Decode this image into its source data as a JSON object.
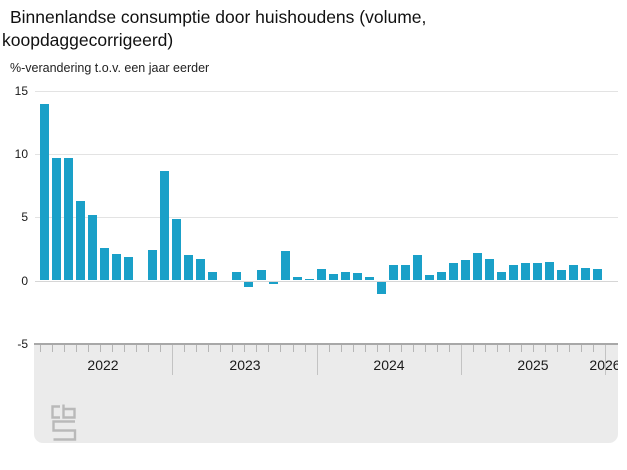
{
  "title": {
    "line1": "Binnenlandse consumptie door huishoudens (volume,",
    "line2": "koopdaggecorrigeerd)"
  },
  "chart_data": {
    "type": "bar",
    "title": "Binnenlandse consumptie door huishoudens (volume, koopdaggecorrigeerd)",
    "unit_label": "%-verandering t.o.v. een jaar eerder",
    "ylabel": "%-verandering t.o.v. een jaar eerder",
    "ylim": [
      -5,
      15
    ],
    "yticks": [
      15,
      10,
      5,
      0,
      -5
    ],
    "grid": true,
    "legend": "none",
    "bar_color": "#1aa0c8",
    "x_year_labels": [
      "2022",
      "2023",
      "2024",
      "2025",
      "2026"
    ],
    "x": [
      "2022-02",
      "2022-03",
      "2022-04",
      "2022-05",
      "2022-06",
      "2022-07",
      "2022-08",
      "2022-09",
      "2022-10",
      "2022-11",
      "2022-12",
      "2023-01",
      "2023-02",
      "2023-03",
      "2023-04",
      "2023-05",
      "2023-06",
      "2023-07",
      "2023-08",
      "2023-09",
      "2023-10",
      "2023-11",
      "2023-12",
      "2024-01",
      "2024-02",
      "2024-03",
      "2024-04",
      "2024-05",
      "2024-06",
      "2024-07",
      "2024-08",
      "2024-09",
      "2024-10",
      "2024-11",
      "2024-12",
      "2025-01",
      "2025-02",
      "2025-03",
      "2025-04",
      "2025-05",
      "2025-06",
      "2025-07",
      "2025-08",
      "2025-09",
      "2025-10",
      "2025-11",
      "2025-12"
    ],
    "values": [
      14.0,
      9.7,
      9.7,
      6.3,
      5.2,
      2.6,
      2.1,
      1.9,
      0.0,
      2.4,
      8.7,
      4.9,
      2.0,
      1.7,
      0.7,
      0.0,
      0.7,
      -0.4,
      0.8,
      -0.2,
      2.3,
      0.3,
      0.1,
      0.9,
      0.5,
      0.7,
      0.6,
      0.3,
      -1.0,
      1.2,
      1.2,
      2.0,
      0.4,
      0.7,
      1.4,
      1.6,
      2.2,
      1.7,
      0.7,
      1.2,
      1.4,
      1.4,
      1.5,
      0.8,
      1.2,
      1.0,
      0.9
    ],
    "source_logo": "cbs"
  }
}
